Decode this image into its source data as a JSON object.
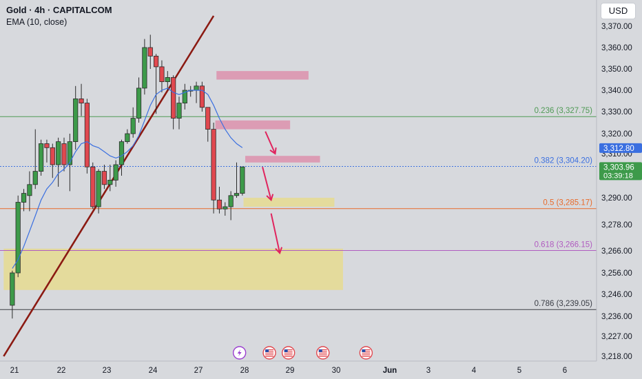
{
  "header": {
    "title": "Gold · 4h · CAPITALCOM",
    "indicator": "EMA (10, close)"
  },
  "currency_button": "USD",
  "colors": {
    "background": "#d7d9dd",
    "up_candle": "#3d9a4a",
    "down_candle": "#e0484f",
    "ema": "#3a6fe0",
    "trendline": "#8b1a12",
    "pink_zone": "#de8aa8",
    "yellow_zone": "#e6dc8e",
    "arrow": "#e0245e"
  },
  "chart_data": {
    "type": "candlestick",
    "y_ticks": [
      "3,370.00",
      "3,360.00",
      "3,350.00",
      "3,340.00",
      "3,330.00",
      "3,320.00",
      "3,310.00",
      "3,290.00",
      "3,278.00",
      "3,266.00",
      "3,256.00",
      "3,246.00",
      "3,236.00",
      "3,227.00",
      "3,218.00"
    ],
    "x_ticks": [
      "21",
      "22",
      "23",
      "24",
      "27",
      "28",
      "29",
      "30",
      "Jun",
      "3",
      "4",
      "5",
      "6"
    ],
    "candles": [
      {
        "x": 1,
        "o": 3241,
        "h": 3257,
        "l": 3235,
        "c": 3256
      },
      {
        "x": 2,
        "o": 3256,
        "h": 3291,
        "l": 3254,
        "c": 3288
      },
      {
        "x": 3,
        "o": 3288,
        "h": 3294,
        "l": 3284,
        "c": 3292
      },
      {
        "x": 4,
        "o": 3291,
        "h": 3302,
        "l": 3284,
        "c": 3296
      },
      {
        "x": 5,
        "o": 3296,
        "h": 3322,
        "l": 3294,
        "c": 3302
      },
      {
        "x": 6,
        "o": 3302,
        "h": 3317,
        "l": 3300,
        "c": 3315
      },
      {
        "x": 7,
        "o": 3315,
        "h": 3317,
        "l": 3306,
        "c": 3313
      },
      {
        "x": 8,
        "o": 3313,
        "h": 3315,
        "l": 3299,
        "c": 3305
      },
      {
        "x": 9,
        "o": 3305,
        "h": 3318,
        "l": 3295,
        "c": 3316
      },
      {
        "x": 10,
        "o": 3315,
        "h": 3318,
        "l": 3302,
        "c": 3305
      },
      {
        "x": 11,
        "o": 3305,
        "h": 3320,
        "l": 3293,
        "c": 3316
      },
      {
        "x": 12,
        "o": 3316,
        "h": 3342,
        "l": 3312,
        "c": 3336
      },
      {
        "x": 13,
        "o": 3336,
        "h": 3343,
        "l": 3328,
        "c": 3334
      },
      {
        "x": 14,
        "o": 3334,
        "h": 3336,
        "l": 3301,
        "c": 3304
      },
      {
        "x": 15,
        "o": 3304,
        "h": 3306,
        "l": 3285,
        "c": 3286
      },
      {
        "x": 16,
        "o": 3286,
        "h": 3303,
        "l": 3283,
        "c": 3302
      },
      {
        "x": 17,
        "o": 3302,
        "h": 3305,
        "l": 3294,
        "c": 3296
      },
      {
        "x": 18,
        "o": 3296,
        "h": 3305,
        "l": 3293,
        "c": 3298
      },
      {
        "x": 19,
        "o": 3298,
        "h": 3307,
        "l": 3295,
        "c": 3305
      },
      {
        "x": 20,
        "o": 3305,
        "h": 3317,
        "l": 3300,
        "c": 3316
      },
      {
        "x": 21,
        "o": 3316,
        "h": 3322,
        "l": 3315,
        "c": 3320
      },
      {
        "x": 22,
        "o": 3320,
        "h": 3332,
        "l": 3318,
        "c": 3327
      },
      {
        "x": 23,
        "o": 3327,
        "h": 3346,
        "l": 3325,
        "c": 3341
      },
      {
        "x": 24,
        "o": 3341,
        "h": 3364,
        "l": 3338,
        "c": 3360
      },
      {
        "x": 25,
        "o": 3360,
        "h": 3366,
        "l": 3350,
        "c": 3356
      },
      {
        "x": 26,
        "o": 3356,
        "h": 3357,
        "l": 3329,
        "c": 3351
      },
      {
        "x": 27,
        "o": 3351,
        "h": 3354,
        "l": 3339,
        "c": 3344
      },
      {
        "x": 28,
        "o": 3344,
        "h": 3349,
        "l": 3340,
        "c": 3346
      },
      {
        "x": 29,
        "o": 3346,
        "h": 3347,
        "l": 3322,
        "c": 3327
      },
      {
        "x": 30,
        "o": 3327,
        "h": 3337,
        "l": 3322,
        "c": 3334
      },
      {
        "x": 31,
        "o": 3334,
        "h": 3343,
        "l": 3331,
        "c": 3340
      },
      {
        "x": 32,
        "o": 3340,
        "h": 3342,
        "l": 3337,
        "c": 3340
      },
      {
        "x": 33,
        "o": 3340,
        "h": 3344,
        "l": 3334,
        "c": 3342
      },
      {
        "x": 34,
        "o": 3342,
        "h": 3344,
        "l": 3330,
        "c": 3332
      },
      {
        "x": 35,
        "o": 3332,
        "h": 3332,
        "l": 3316,
        "c": 3322
      },
      {
        "x": 36,
        "o": 3322,
        "h": 3325,
        "l": 3283,
        "c": 3289
      },
      {
        "x": 37,
        "o": 3289,
        "h": 3295,
        "l": 3283,
        "c": 3285
      },
      {
        "x": 38,
        "o": 3285,
        "h": 3288,
        "l": 3282,
        "c": 3286
      },
      {
        "x": 39,
        "o": 3286,
        "h": 3293,
        "l": 3280,
        "c": 3291
      },
      {
        "x": 40,
        "o": 3291,
        "h": 3306,
        "l": 3290,
        "c": 3292
      },
      {
        "x": 41,
        "o": 3292,
        "h": 3304,
        "l": 3291,
        "c": 3304
      }
    ],
    "ema_10": [
      3258,
      3262,
      3268,
      3275,
      3282,
      3289,
      3294,
      3297,
      3301,
      3303,
      3306,
      3311,
      3315,
      3316,
      3314,
      3313,
      3311,
      3309,
      3308,
      3309,
      3311,
      3314,
      3319,
      3326,
      3333,
      3338,
      3340,
      3341,
      3339,
      3338,
      3339,
      3340,
      3340,
      3340,
      3338,
      3333,
      3327,
      3322,
      3318,
      3315,
      3313
    ],
    "trendline": [
      {
        "x": -0.5,
        "y": 3218
      },
      {
        "x": 36,
        "y": 3375
      }
    ],
    "fib_levels": [
      {
        "ratio": "0.236",
        "price": 3327.75,
        "label": "0.236 (3,327.75)",
        "color": "#4f9a55"
      },
      {
        "ratio": "0.382",
        "price": 3304.2,
        "label": "0.382 (3,304.20)",
        "color": "#3a6fe0"
      },
      {
        "ratio": "0.5",
        "price": 3285.17,
        "label": "0.5 (3,285.17)",
        "color": "#e86a2a"
      },
      {
        "ratio": "0.618",
        "price": 3266.15,
        "label": "0.618 (3,266.15)",
        "color": "#b05bc0"
      },
      {
        "ratio": "0.786",
        "price": 3239.05,
        "label": "0.786 (3,239.05)",
        "color": "#3a3d45"
      }
    ],
    "zones": [
      {
        "color": "pink",
        "x1": 36.5,
        "x2": 52.5,
        "y1": 3345,
        "y2": 3349
      },
      {
        "color": "pink",
        "x1": 36.3,
        "x2": 49.3,
        "y1": 3322,
        "y2": 3326
      },
      {
        "color": "pink",
        "x1": 41.5,
        "x2": 54.5,
        "y1": 3306,
        "y2": 3309
      },
      {
        "color": "yellow",
        "x1": 41.2,
        "x2": 57,
        "y1": 3286,
        "y2": 3290
      },
      {
        "color": "yellow",
        "x1": -0.5,
        "x2": 58.5,
        "y1": 3248,
        "y2": 3267
      }
    ],
    "arrows": [
      {
        "x1": 45,
        "y1": 3321,
        "x2": 46.7,
        "y2": 3310
      },
      {
        "x1": 44.5,
        "y1": 3304,
        "x2": 46,
        "y2": 3289
      },
      {
        "x1": 46,
        "y1": 3283,
        "x2": 47.5,
        "y2": 3265
      }
    ],
    "price_labels": [
      {
        "price": 3312.8,
        "text": "3,312.80",
        "color": "#3a6fe0"
      },
      {
        "price": 3303.96,
        "text": "3,303.96",
        "subtext": "03:39:18",
        "color": "#3d9a4a"
      }
    ],
    "event_markers": [
      {
        "x": 40.5,
        "type": "lightning-icon"
      },
      {
        "x": 45.7,
        "type": "us-flag-icon"
      },
      {
        "x": 49,
        "type": "us-flag-icon"
      },
      {
        "x": 55,
        "type": "us-flag-icon"
      },
      {
        "x": 62.5,
        "type": "us-flag-icon"
      }
    ]
  }
}
